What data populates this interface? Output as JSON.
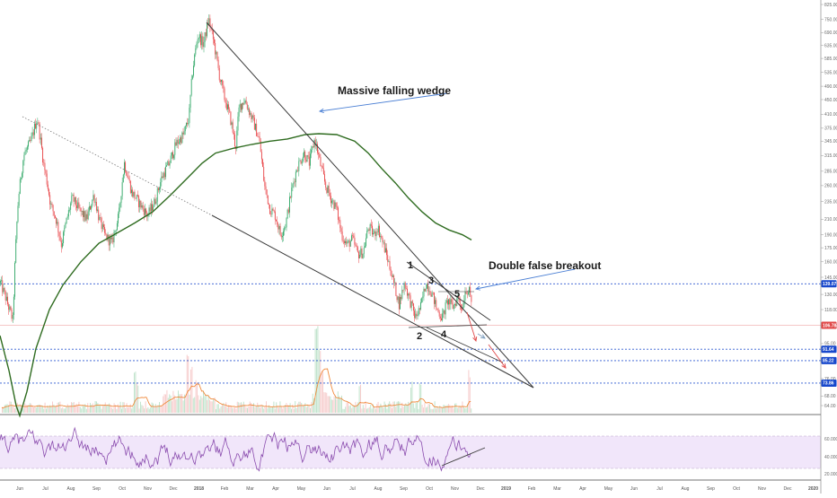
{
  "chart_data": {
    "type": "candlestick",
    "price_axis": {
      "scale": "log",
      "ticks": [
        "825.00",
        "750.00",
        "690.00",
        "635.00",
        "585.00",
        "535.00",
        "490.00",
        "450.00",
        "410.00",
        "375.00",
        "345.00",
        "315.00",
        "285.00",
        "260.00",
        "235.00",
        "210.00",
        "190.00",
        "175.00",
        "160.00",
        "145.00",
        "130.00",
        "118.00",
        "106.00",
        "95.00",
        "85.00",
        "76.00",
        "68.00",
        "64.00"
      ],
      "ylim": [
        60,
        840
      ]
    },
    "price_badges": [
      {
        "value": "139.07",
        "color": "#1848cc"
      },
      {
        "value": "106.78",
        "color": "#e04848"
      },
      {
        "value": "91.64",
        "color": "#1848cc"
      },
      {
        "value": "85.22",
        "color": "#1848cc"
      },
      {
        "value": "73.86",
        "color": "#1848cc"
      }
    ],
    "rsi_axis": {
      "ticks": [
        "60.0000",
        "40.0000",
        "20.0000"
      ],
      "ylim": [
        0,
        100
      ]
    },
    "time_axis": {
      "labels": [
        "Jun",
        "Jul",
        "Aug",
        "Sep",
        "Oct",
        "Nov",
        "Dec",
        "2018",
        "Feb",
        "Mar",
        "Apr",
        "May",
        "Jun",
        "Jul",
        "Aug",
        "Sep",
        "Oct",
        "Nov",
        "Dec",
        "2019",
        "Feb",
        "Mar",
        "Apr",
        "May",
        "Jun",
        "Jul",
        "Aug",
        "Sep",
        "Oct",
        "Nov",
        "Dec",
        "2020"
      ]
    },
    "annotations": {
      "wedge_title": "Massive falling wedge",
      "breakout_title": "Double false breakout",
      "wave_labels": [
        "1",
        "2",
        "3",
        "4",
        "5"
      ]
    }
  }
}
